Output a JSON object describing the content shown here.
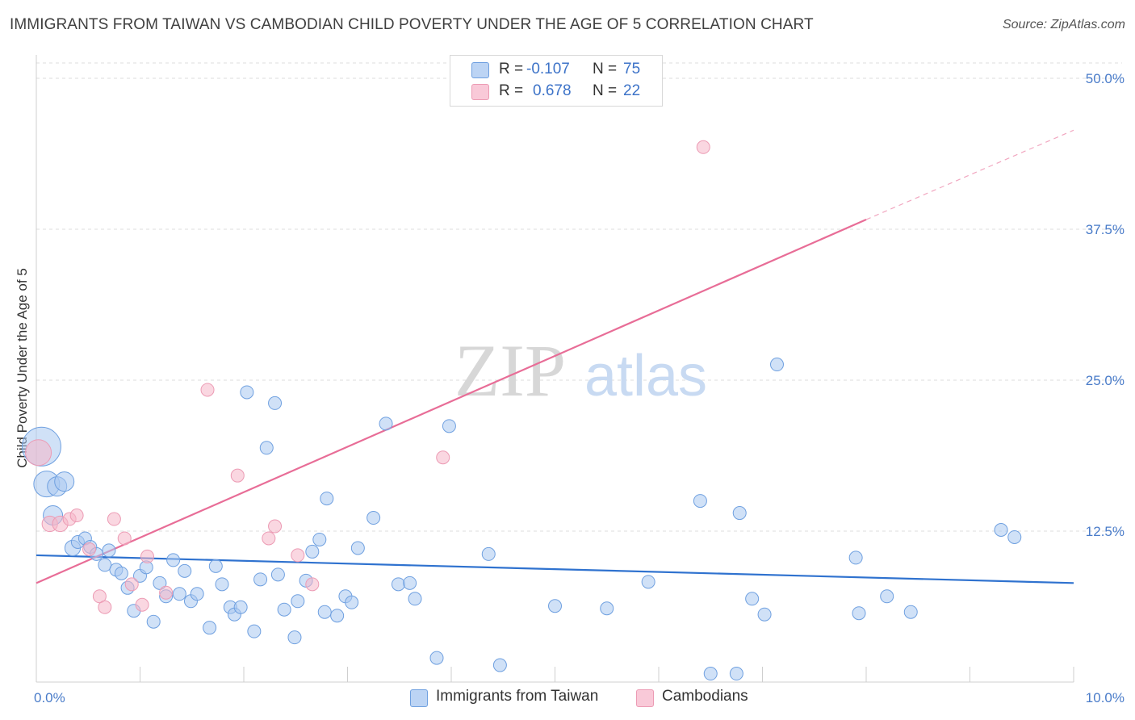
{
  "title": "IMMIGRANTS FROM TAIWAN VS CAMBODIAN CHILD POVERTY UNDER THE AGE OF 5 CORRELATION CHART",
  "source": "Source: ZipAtlas.com",
  "watermark": {
    "zip": "ZIP",
    "atlas": "atlas"
  },
  "legend": {
    "rows": [
      {
        "r_label": "R =",
        "r_value": "-0.107",
        "n_label": "N =",
        "n_value": "75",
        "color": "#a9c8f0"
      },
      {
        "r_label": "R =",
        "r_value": "0.678",
        "n_label": "N =",
        "n_value": "22",
        "color": "#f5b6c9"
      }
    ]
  },
  "bottom_legend": [
    {
      "label": "Immigrants from Taiwan",
      "color": "#a9c8f0"
    },
    {
      "label": "Cambodians",
      "color": "#f5b6c9"
    }
  ],
  "chart_data": {
    "type": "scatter",
    "title": "IMMIGRANTS FROM TAIWAN VS CAMBODIAN CHILD POVERTY UNDER THE AGE OF 5 CORRELATION CHART",
    "xlabel": "",
    "ylabel": "Child Poverty Under the Age of 5",
    "xlim": [
      0,
      10
    ],
    "ylim": [
      0,
      50
    ],
    "x_tick_labels": [
      {
        "value": 0,
        "label": "0.0%"
      },
      {
        "value": 10,
        "label": "10.0%"
      }
    ],
    "y_tick_labels": [
      {
        "value": 12.5,
        "label": "12.5%"
      },
      {
        "value": 25,
        "label": "25.0%"
      },
      {
        "value": 37.5,
        "label": "37.5%"
      },
      {
        "value": 50,
        "label": "50.0%"
      }
    ],
    "grid": true,
    "legend_position": "top-center",
    "series": [
      {
        "name": "Immigrants from Taiwan",
        "color": "#6fa0e0",
        "fill": "#a9c8f0",
        "trend": {
          "x": [
            0,
            10
          ],
          "y": [
            10.5,
            8.2
          ],
          "color": "#2f72cf"
        },
        "points": [
          {
            "x": 0.05,
            "y": 19.5,
            "s": 3
          },
          {
            "x": 0.1,
            "y": 16.4,
            "s": 2
          },
          {
            "x": 0.2,
            "y": 16.2,
            "s": 1.5
          },
          {
            "x": 0.27,
            "y": 16.6,
            "s": 1.5
          },
          {
            "x": 0.16,
            "y": 13.8,
            "s": 1.5
          },
          {
            "x": 0.35,
            "y": 11.1,
            "s": 1.2
          },
          {
            "x": 0.4,
            "y": 11.6,
            "s": 1
          },
          {
            "x": 0.47,
            "y": 11.9,
            "s": 1
          },
          {
            "x": 0.52,
            "y": 11.2,
            "s": 1
          },
          {
            "x": 0.58,
            "y": 10.6,
            "s": 1
          },
          {
            "x": 0.66,
            "y": 9.7,
            "s": 1
          },
          {
            "x": 0.7,
            "y": 10.9,
            "s": 1
          },
          {
            "x": 0.77,
            "y": 9.3,
            "s": 1
          },
          {
            "x": 0.82,
            "y": 9.0,
            "s": 1
          },
          {
            "x": 0.88,
            "y": 7.8,
            "s": 1
          },
          {
            "x": 0.94,
            "y": 5.9,
            "s": 1
          },
          {
            "x": 1.0,
            "y": 8.8,
            "s": 1
          },
          {
            "x": 1.06,
            "y": 9.5,
            "s": 1
          },
          {
            "x": 1.13,
            "y": 5.0,
            "s": 1
          },
          {
            "x": 1.19,
            "y": 8.2,
            "s": 1
          },
          {
            "x": 1.25,
            "y": 7.1,
            "s": 1
          },
          {
            "x": 1.32,
            "y": 10.1,
            "s": 1
          },
          {
            "x": 1.38,
            "y": 7.3,
            "s": 1
          },
          {
            "x": 1.43,
            "y": 9.2,
            "s": 1
          },
          {
            "x": 1.49,
            "y": 6.7,
            "s": 1
          },
          {
            "x": 1.55,
            "y": 7.3,
            "s": 1
          },
          {
            "x": 1.67,
            "y": 4.5,
            "s": 1
          },
          {
            "x": 1.73,
            "y": 9.6,
            "s": 1
          },
          {
            "x": 1.79,
            "y": 8.1,
            "s": 1
          },
          {
            "x": 1.87,
            "y": 6.2,
            "s": 1
          },
          {
            "x": 1.91,
            "y": 5.6,
            "s": 1
          },
          {
            "x": 1.97,
            "y": 6.2,
            "s": 1
          },
          {
            "x": 2.03,
            "y": 24.0,
            "s": 1
          },
          {
            "x": 2.1,
            "y": 4.2,
            "s": 1
          },
          {
            "x": 2.16,
            "y": 8.5,
            "s": 1
          },
          {
            "x": 2.22,
            "y": 19.4,
            "s": 1
          },
          {
            "x": 2.3,
            "y": 23.1,
            "s": 1
          },
          {
            "x": 2.33,
            "y": 8.9,
            "s": 1
          },
          {
            "x": 2.39,
            "y": 6.0,
            "s": 1
          },
          {
            "x": 2.49,
            "y": 3.7,
            "s": 1
          },
          {
            "x": 2.52,
            "y": 6.7,
            "s": 1
          },
          {
            "x": 2.6,
            "y": 8.4,
            "s": 1
          },
          {
            "x": 2.66,
            "y": 10.8,
            "s": 1
          },
          {
            "x": 2.73,
            "y": 11.8,
            "s": 1
          },
          {
            "x": 2.78,
            "y": 5.8,
            "s": 1
          },
          {
            "x": 2.8,
            "y": 15.2,
            "s": 1
          },
          {
            "x": 2.9,
            "y": 5.5,
            "s": 1
          },
          {
            "x": 2.98,
            "y": 7.1,
            "s": 1
          },
          {
            "x": 3.04,
            "y": 6.6,
            "s": 1
          },
          {
            "x": 3.1,
            "y": 11.1,
            "s": 1
          },
          {
            "x": 3.25,
            "y": 13.6,
            "s": 1
          },
          {
            "x": 3.37,
            "y": 21.4,
            "s": 1
          },
          {
            "x": 3.49,
            "y": 8.1,
            "s": 1
          },
          {
            "x": 3.6,
            "y": 8.2,
            "s": 1
          },
          {
            "x": 3.65,
            "y": 6.9,
            "s": 1
          },
          {
            "x": 3.86,
            "y": 2.0,
            "s": 1
          },
          {
            "x": 3.98,
            "y": 21.2,
            "s": 1
          },
          {
            "x": 4.36,
            "y": 10.6,
            "s": 1
          },
          {
            "x": 4.47,
            "y": 1.4,
            "s": 1
          },
          {
            "x": 5.0,
            "y": 6.3,
            "s": 1
          },
          {
            "x": 5.5,
            "y": 6.1,
            "s": 1
          },
          {
            "x": 5.9,
            "y": 8.3,
            "s": 1
          },
          {
            "x": 6.4,
            "y": 15.0,
            "s": 1
          },
          {
            "x": 6.5,
            "y": 0.7,
            "s": 1
          },
          {
            "x": 6.75,
            "y": 0.7,
            "s": 1
          },
          {
            "x": 6.78,
            "y": 14.0,
            "s": 1
          },
          {
            "x": 6.9,
            "y": 6.9,
            "s": 1
          },
          {
            "x": 7.02,
            "y": 5.6,
            "s": 1
          },
          {
            "x": 7.14,
            "y": 26.3,
            "s": 1
          },
          {
            "x": 7.9,
            "y": 10.3,
            "s": 1
          },
          {
            "x": 7.93,
            "y": 5.7,
            "s": 1
          },
          {
            "x": 8.2,
            "y": 7.1,
            "s": 1
          },
          {
            "x": 8.43,
            "y": 5.8,
            "s": 1
          },
          {
            "x": 9.3,
            "y": 12.6,
            "s": 1
          },
          {
            "x": 9.43,
            "y": 12.0,
            "s": 1
          }
        ]
      },
      {
        "name": "Cambodians",
        "color": "#ec9bb4",
        "fill": "#f5b6c9",
        "trend": {
          "x": [
            0,
            8.0
          ],
          "y": [
            8.2,
            38.3
          ],
          "dashed_to": {
            "x": 10.0,
            "y": 45.7
          },
          "color": "#e86d97"
        },
        "points": [
          {
            "x": 0.02,
            "y": 19.0,
            "s": 2
          },
          {
            "x": 0.13,
            "y": 13.1,
            "s": 1.2
          },
          {
            "x": 0.23,
            "y": 13.1,
            "s": 1.2
          },
          {
            "x": 0.32,
            "y": 13.5,
            "s": 1
          },
          {
            "x": 0.39,
            "y": 13.8,
            "s": 1
          },
          {
            "x": 0.51,
            "y": 11.0,
            "s": 1
          },
          {
            "x": 0.61,
            "y": 7.1,
            "s": 1
          },
          {
            "x": 0.66,
            "y": 6.2,
            "s": 1
          },
          {
            "x": 0.75,
            "y": 13.5,
            "s": 1
          },
          {
            "x": 0.85,
            "y": 11.9,
            "s": 1
          },
          {
            "x": 0.92,
            "y": 8.1,
            "s": 1
          },
          {
            "x": 1.02,
            "y": 6.4,
            "s": 1
          },
          {
            "x": 1.07,
            "y": 10.4,
            "s": 1
          },
          {
            "x": 1.25,
            "y": 7.4,
            "s": 1
          },
          {
            "x": 1.65,
            "y": 24.2,
            "s": 1
          },
          {
            "x": 1.94,
            "y": 17.1,
            "s": 1
          },
          {
            "x": 2.24,
            "y": 11.9,
            "s": 1
          },
          {
            "x": 2.3,
            "y": 12.9,
            "s": 1
          },
          {
            "x": 2.52,
            "y": 10.5,
            "s": 1
          },
          {
            "x": 2.66,
            "y": 8.1,
            "s": 1
          },
          {
            "x": 3.92,
            "y": 18.6,
            "s": 1
          },
          {
            "x": 6.43,
            "y": 44.3,
            "s": 1
          }
        ]
      }
    ]
  }
}
